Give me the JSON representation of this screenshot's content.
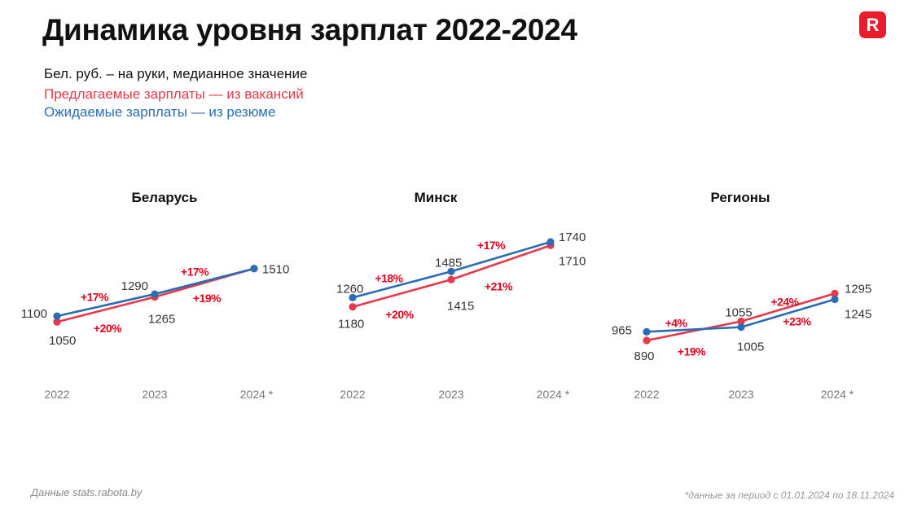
{
  "header": {
    "title": "Динамика уровня зарплат 2022-2024",
    "logo_letter": "R",
    "units_note": "Бел. руб. – на руки, медианное значение",
    "offered_note": "Предлагаемые зарплаты — из вакансий",
    "expected_note": "Ожидаемые зарплаты — из резюме"
  },
  "footer": {
    "source": "Данные stats.rabota.by",
    "period_note": "*данные за период с 01.01.2024 по 18.11.2024"
  },
  "colors": {
    "offered": "#e8394a",
    "expected": "#2a6db5",
    "pct_text": "#e2001a"
  },
  "chart_data": [
    {
      "type": "line",
      "title": "Беларусь",
      "categories": [
        "2022",
        "2023",
        "2024 *"
      ],
      "series": [
        {
          "key": "offered",
          "values": [
            1050,
            1265,
            1510
          ],
          "labels": [
            "1050",
            "1265",
            ""
          ],
          "pct": [
            "+20%",
            "+19%"
          ]
        },
        {
          "key": "expected",
          "values": [
            1100,
            1290,
            1510
          ],
          "labels": [
            "1100",
            "1290",
            "1510"
          ],
          "pct": [
            "+17%",
            "+17%"
          ]
        }
      ]
    },
    {
      "type": "line",
      "title": "Минск",
      "categories": [
        "2022",
        "2023",
        "2024 *"
      ],
      "series": [
        {
          "key": "offered",
          "values": [
            1180,
            1415,
            1710
          ],
          "labels": [
            "1180",
            "1415",
            "1710"
          ],
          "pct": [
            "+20%",
            "+21%"
          ]
        },
        {
          "key": "expected",
          "values": [
            1260,
            1485,
            1740
          ],
          "labels": [
            "1260",
            "1485",
            "1740"
          ],
          "pct": [
            "+18%",
            "+17%"
          ]
        }
      ]
    },
    {
      "type": "line",
      "title": "Регионы",
      "categories": [
        "2022",
        "2023",
        "2024 *"
      ],
      "series": [
        {
          "key": "offered",
          "values": [
            890,
            1055,
            1295
          ],
          "labels": [
            "890",
            "1055",
            "1295"
          ],
          "pct": [
            "+19%",
            "+23%"
          ]
        },
        {
          "key": "expected",
          "values": [
            965,
            1005,
            1245
          ],
          "labels": [
            "965",
            "1005",
            "1245"
          ],
          "pct": [
            "+4%",
            "+24%"
          ]
        }
      ]
    }
  ]
}
